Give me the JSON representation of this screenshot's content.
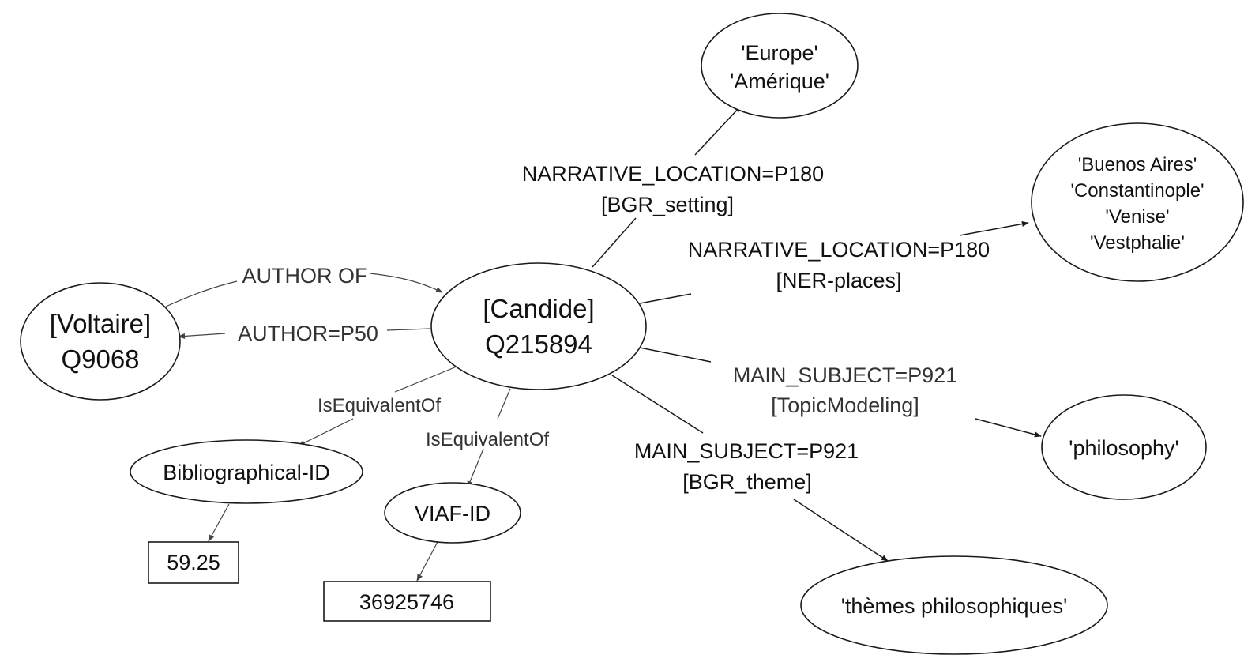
{
  "nodes": {
    "candide": {
      "lines": [
        "[Candide]",
        "Q215894"
      ]
    },
    "voltaire": {
      "lines": [
        "[Voltaire]",
        "Q9068"
      ]
    },
    "europe": {
      "lines": [
        "'Europe'",
        "'Amérique'"
      ]
    },
    "places": {
      "lines": [
        "'Buenos Aires'",
        "'Constantinople'",
        "'Venise'",
        "'Vestphalie'"
      ]
    },
    "philosophy": {
      "lines": [
        "'philosophy'"
      ]
    },
    "themes": {
      "lines": [
        "'thèmes philosophiques'"
      ]
    },
    "biblio": {
      "lines": [
        "Bibliographical-ID"
      ]
    },
    "viaf": {
      "lines": [
        "VIAF-ID"
      ]
    },
    "biblio_value": {
      "lines": [
        "59.25"
      ]
    },
    "viaf_value": {
      "lines": [
        "36925746"
      ]
    }
  },
  "edges": {
    "author_of": {
      "lines": [
        "AUTHOR OF"
      ]
    },
    "author_p50": {
      "lines": [
        "AUTHOR=P50"
      ]
    },
    "narrative_setting": {
      "lines": [
        "NARRATIVE_LOCATION=P180",
        "[BGR_setting]"
      ]
    },
    "narrative_ner": {
      "lines": [
        "NARRATIVE_LOCATION=P180",
        "[NER-places]"
      ]
    },
    "subject_topic": {
      "lines": [
        "MAIN_SUBJECT=P921",
        "[TopicModeling]"
      ]
    },
    "subject_theme": {
      "lines": [
        "MAIN_SUBJECT=P921",
        "[BGR_theme]"
      ]
    },
    "equiv_biblio": {
      "lines": [
        "IsEquivalentOf"
      ]
    },
    "equiv_viaf": {
      "lines": [
        "IsEquivalentOf"
      ]
    }
  }
}
